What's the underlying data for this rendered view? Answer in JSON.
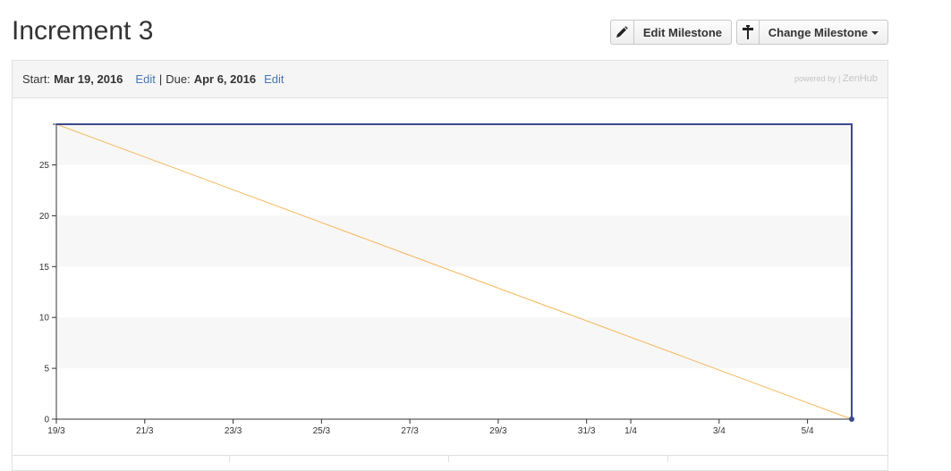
{
  "milestone": {
    "title": "Increment 3"
  },
  "toolbar": {
    "edit_label": "Edit Milestone",
    "change_label": "Change Milestone"
  },
  "header": {
    "start_prefix": "Start:",
    "start_date": "Mar 19, 2016",
    "edit_start": "Edit",
    "separator": "|",
    "due_prefix": "Due:",
    "due_date": "Apr 6, 2016",
    "edit_due": "Edit",
    "powered_by": "powered by |",
    "brand": "ZenHub"
  },
  "colors": {
    "ideal_line": "#f5b75a",
    "actual_line": "#3b4a8c",
    "band": "#f7f7f7",
    "link": "#4a77b4"
  },
  "icons": {
    "edit": "pencil-icon",
    "change": "signpost-icon"
  },
  "chart_data": {
    "type": "line",
    "title": "",
    "xlabel": "",
    "ylabel": "",
    "x_domain": [
      "2016-03-19",
      "2016-04-06"
    ],
    "ylim": [
      0,
      29
    ],
    "y_ticks": [
      0,
      5,
      10,
      15,
      20,
      25
    ],
    "x_ticks": [
      {
        "date": "2016-03-19",
        "label": "19/3"
      },
      {
        "date": "2016-03-21",
        "label": "21/3"
      },
      {
        "date": "2016-03-23",
        "label": "23/3"
      },
      {
        "date": "2016-03-25",
        "label": "25/3"
      },
      {
        "date": "2016-03-27",
        "label": "27/3"
      },
      {
        "date": "2016-03-29",
        "label": "29/3"
      },
      {
        "date": "2016-03-31",
        "label": "31/3"
      },
      {
        "date": "2016-04-01",
        "label": "1/4"
      },
      {
        "date": "2016-04-03",
        "label": "3/4"
      },
      {
        "date": "2016-04-05",
        "label": "5/4"
      }
    ],
    "series": [
      {
        "role": "ideal",
        "points": [
          {
            "x": "2016-03-19",
            "y": 29
          },
          {
            "x": "2016-04-06",
            "y": 0
          }
        ]
      },
      {
        "role": "actual",
        "points": [
          {
            "x": "2016-03-19",
            "y": 29
          },
          {
            "x": "2016-04-06",
            "y": 29
          },
          {
            "x": "2016-04-06",
            "y": 0
          }
        ]
      }
    ],
    "grid": "alternating-bands",
    "legend": "none"
  }
}
